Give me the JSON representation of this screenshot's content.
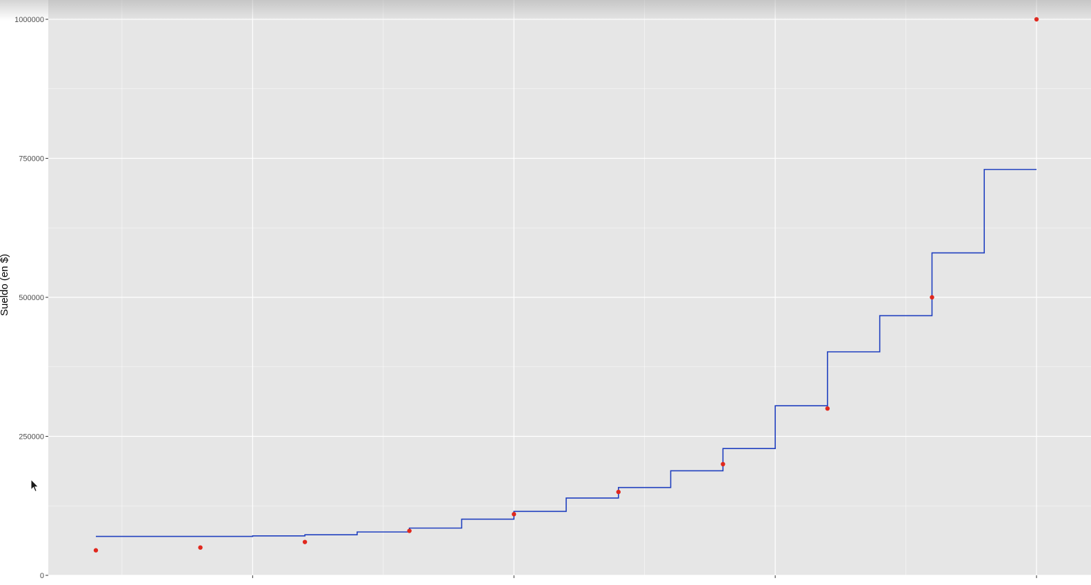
{
  "colors": {
    "panel_background": "#e6e6e6",
    "grid_major": "#ffffff",
    "step_line": "#1f3fbf",
    "points": "#e0281e"
  },
  "icons": {
    "cursor": "mouse-pointer-icon"
  },
  "chart_data": {
    "type": "scatter",
    "title": "",
    "xlabel": "",
    "ylabel": "Sueldo (en $)",
    "xlim": [
      -0.6,
      10.2
    ],
    "ylim": [
      0,
      1000000
    ],
    "yticks": [
      0,
      250000,
      500000,
      750000,
      1000000
    ],
    "ytick_labels": [
      "0",
      "250000",
      "500000",
      "750000",
      "1000000"
    ],
    "xticks": [
      2.5,
      5,
      7.5,
      10
    ],
    "grid": true,
    "legend": "none",
    "series": [
      {
        "type": "scatter",
        "x": [
          1,
          2,
          3,
          4,
          5,
          6,
          7,
          8,
          9,
          10
        ],
        "y": [
          45000,
          50000,
          60000,
          80000,
          110000,
          150000,
          200000,
          300000,
          500000,
          1000000
        ]
      },
      {
        "type": "step",
        "x": [
          1,
          2.5,
          3,
          3.5,
          4,
          4.5,
          5,
          5.5,
          6,
          6.5,
          7,
          7.5,
          8,
          8.5,
          9,
          9.5,
          10
        ],
        "y": [
          70000,
          71000,
          73000,
          78000,
          85000,
          101000,
          115000,
          139000,
          158000,
          188000,
          228000,
          305000,
          402000,
          467000,
          580000,
          730000,
          730000
        ]
      }
    ]
  }
}
